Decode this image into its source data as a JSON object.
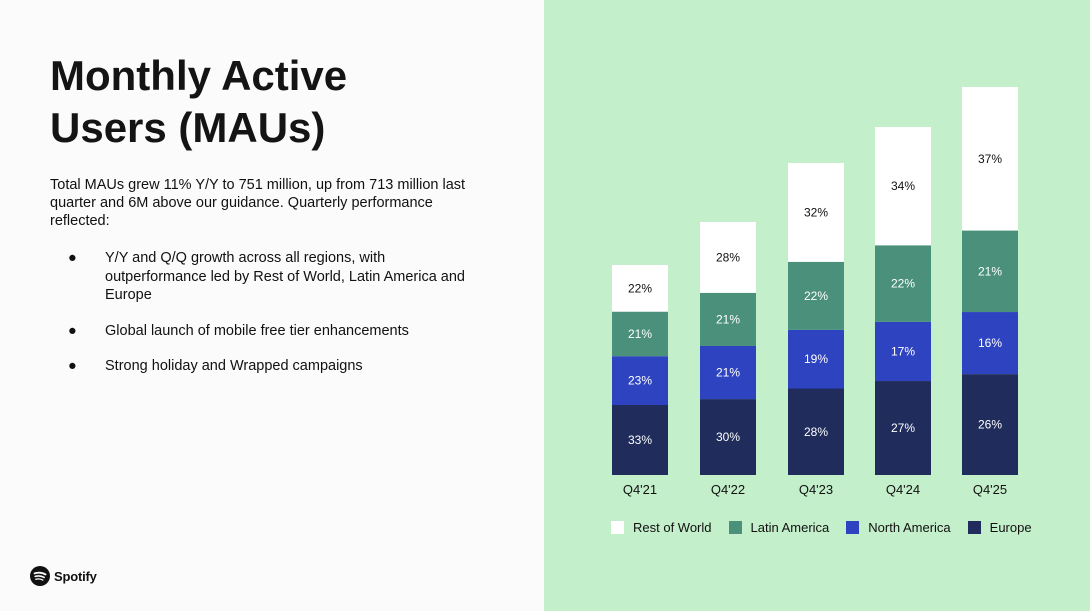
{
  "title": "Monthly Active Users (MAUs)",
  "intro": "Total MAUs grew 11% Y/Y to 751 million, up from 713 million last quarter and 6M above our guidance. Quarterly performance reflected:",
  "bullets": [
    "Y/Y and Q/Q growth across all regions, with outperformance led by Rest of World, Latin America and Europe",
    "Global launch of mobile free tier enhancements",
    "Strong holiday and Wrapped campaigns"
  ],
  "bullet_char": "●",
  "logo": {
    "icon": "spotify-logo-icon",
    "wordmark": "Spotify"
  },
  "colors": {
    "panel": "#c4efcb",
    "europe": "#1f2c5c",
    "north_america": "#2e43c0",
    "latin_america": "#4a907a",
    "rest_of_world": "#ffffff"
  },
  "chart_data": {
    "type": "bar",
    "stacked": true,
    "categories": [
      "Q4'21",
      "Q4'22",
      "Q4'23",
      "Q4'24",
      "Q4'25"
    ],
    "series": [
      {
        "name": "Europe",
        "color": "#1f2c5c",
        "values": [
          33,
          30,
          28,
          27,
          26
        ]
      },
      {
        "name": "North America",
        "color": "#2e43c0",
        "values": [
          23,
          21,
          19,
          17,
          16
        ]
      },
      {
        "name": "Latin America",
        "color": "#4a907a",
        "values": [
          21,
          21,
          22,
          22,
          21
        ]
      },
      {
        "name": "Rest of World",
        "color": "#ffffff",
        "values": [
          22,
          28,
          32,
          34,
          37
        ]
      }
    ],
    "value_suffix": "%",
    "legend": [
      "Rest of World",
      "Latin America",
      "North America",
      "Europe"
    ],
    "legend_position": "bottom",
    "grid": false
  }
}
